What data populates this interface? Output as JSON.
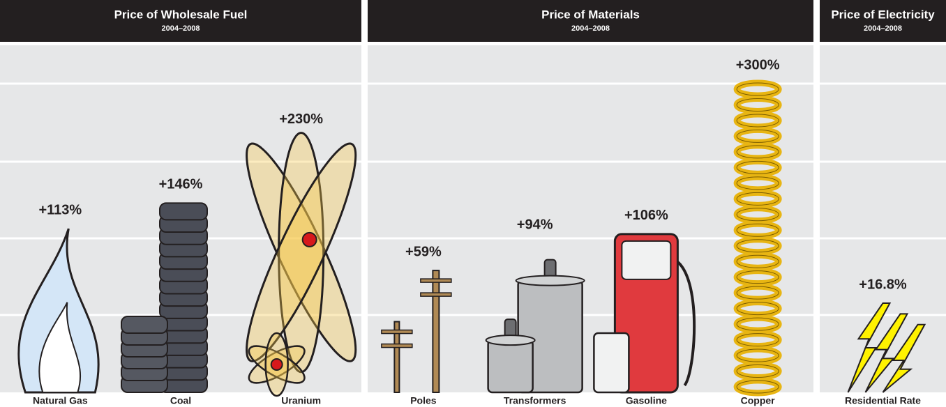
{
  "chart_data": [
    {
      "type": "pictograph",
      "title": "Price of Wholesale Fuel",
      "subtitle": "2004–2008",
      "categories": [
        "Natural Gas",
        "Coal",
        "Uranium"
      ],
      "values": [
        113,
        146,
        230
      ],
      "value_labels": [
        "+113%",
        "+146%",
        "+230%"
      ],
      "ylim": [
        -100,
        300
      ]
    },
    {
      "type": "pictograph",
      "title": "Price of Materials",
      "subtitle": "2004–2008",
      "categories": [
        "Poles",
        "Transformers",
        "Gasoline",
        "Copper"
      ],
      "values": [
        59,
        94,
        106,
        300
      ],
      "value_labels": [
        "+59%",
        "+94%",
        "+106%",
        "+300%"
      ],
      "ylim": [
        -100,
        300
      ]
    },
    {
      "type": "pictograph",
      "title": "Price of Electricity",
      "subtitle": "2004–2008",
      "categories": [
        "Residential Rate"
      ],
      "values": [
        16.8
      ],
      "value_labels": [
        "+16.8%"
      ],
      "ylim": [
        -100,
        300
      ]
    }
  ]
}
